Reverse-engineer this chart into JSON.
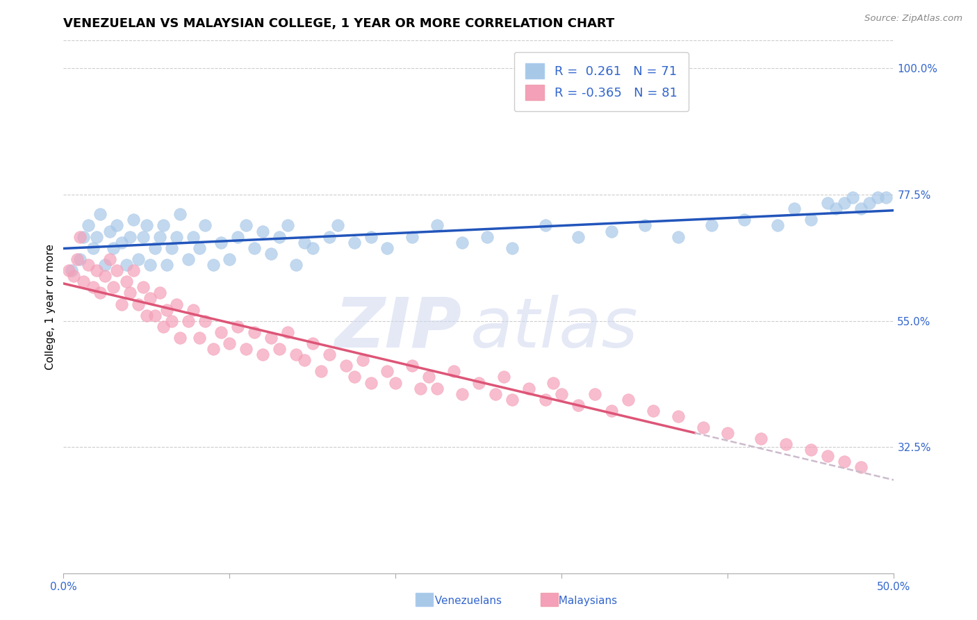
{
  "title": "VENEZUELAN VS MALAYSIAN COLLEGE, 1 YEAR OR MORE CORRELATION CHART",
  "source": "Source: ZipAtlas.com",
  "ylabel": "College, 1 year or more",
  "xlim": [
    0.0,
    0.5
  ],
  "ylim": [
    0.1,
    1.05
  ],
  "xticks": [
    0.0,
    0.1,
    0.2,
    0.3,
    0.4,
    0.5
  ],
  "xticklabels": [
    "0.0%",
    "",
    "",
    "",
    "",
    "50.0%"
  ],
  "yticks_right": [
    0.325,
    0.55,
    0.775,
    1.0
  ],
  "yticklabels_right": [
    "32.5%",
    "55.0%",
    "77.5%",
    "100.0%"
  ],
  "venezuelan_color": "#a8c8e8",
  "malaysian_color": "#f4a0b8",
  "trend_blue": "#2255bb",
  "trend_pink": "#dd5577",
  "trend_dashed_color": "#ccbbcc",
  "R_venezuelan": 0.261,
  "N_venezuelan": 71,
  "R_malaysian": -0.365,
  "N_malaysian": 81,
  "legend_label_venezuelan": "Venezuelans",
  "legend_label_malaysian": "Malaysians",
  "title_fontsize": 13,
  "axis_label_fontsize": 11,
  "tick_fontsize": 11,
  "watermark_color": "#d0d8f0",
  "grid_color": "#cccccc",
  "label_color": "#3366cc",
  "venezuelan_x": [
    0.005,
    0.01,
    0.012,
    0.015,
    0.018,
    0.02,
    0.022,
    0.025,
    0.028,
    0.03,
    0.032,
    0.035,
    0.038,
    0.04,
    0.042,
    0.045,
    0.048,
    0.05,
    0.052,
    0.055,
    0.058,
    0.06,
    0.062,
    0.065,
    0.068,
    0.07,
    0.075,
    0.078,
    0.082,
    0.085,
    0.09,
    0.095,
    0.1,
    0.105,
    0.11,
    0.115,
    0.12,
    0.125,
    0.13,
    0.135,
    0.14,
    0.145,
    0.15,
    0.16,
    0.165,
    0.175,
    0.185,
    0.195,
    0.21,
    0.225,
    0.24,
    0.255,
    0.27,
    0.29,
    0.31,
    0.33,
    0.35,
    0.37,
    0.39,
    0.41,
    0.43,
    0.44,
    0.45,
    0.46,
    0.465,
    0.47,
    0.475,
    0.48,
    0.485,
    0.49,
    0.495
  ],
  "venezuelan_y": [
    0.64,
    0.66,
    0.7,
    0.72,
    0.68,
    0.7,
    0.74,
    0.65,
    0.71,
    0.68,
    0.72,
    0.69,
    0.65,
    0.7,
    0.73,
    0.66,
    0.7,
    0.72,
    0.65,
    0.68,
    0.7,
    0.72,
    0.65,
    0.68,
    0.7,
    0.74,
    0.66,
    0.7,
    0.68,
    0.72,
    0.65,
    0.69,
    0.66,
    0.7,
    0.72,
    0.68,
    0.71,
    0.67,
    0.7,
    0.72,
    0.65,
    0.69,
    0.68,
    0.7,
    0.72,
    0.69,
    0.7,
    0.68,
    0.7,
    0.72,
    0.69,
    0.7,
    0.68,
    0.72,
    0.7,
    0.71,
    0.72,
    0.7,
    0.72,
    0.73,
    0.72,
    0.75,
    0.73,
    0.76,
    0.75,
    0.76,
    0.77,
    0.75,
    0.76,
    0.77,
    0.77
  ],
  "malaysian_x": [
    0.003,
    0.006,
    0.008,
    0.01,
    0.012,
    0.015,
    0.018,
    0.02,
    0.022,
    0.025,
    0.028,
    0.03,
    0.032,
    0.035,
    0.038,
    0.04,
    0.042,
    0.045,
    0.048,
    0.05,
    0.052,
    0.055,
    0.058,
    0.06,
    0.062,
    0.065,
    0.068,
    0.07,
    0.075,
    0.078,
    0.082,
    0.085,
    0.09,
    0.095,
    0.1,
    0.105,
    0.11,
    0.115,
    0.12,
    0.125,
    0.13,
    0.135,
    0.14,
    0.145,
    0.15,
    0.155,
    0.16,
    0.17,
    0.175,
    0.18,
    0.185,
    0.195,
    0.2,
    0.21,
    0.215,
    0.22,
    0.225,
    0.235,
    0.24,
    0.25,
    0.26,
    0.265,
    0.27,
    0.28,
    0.29,
    0.295,
    0.3,
    0.31,
    0.32,
    0.33,
    0.34,
    0.355,
    0.37,
    0.385,
    0.4,
    0.42,
    0.435,
    0.45,
    0.46,
    0.47,
    0.48
  ],
  "malaysian_y": [
    0.64,
    0.63,
    0.66,
    0.7,
    0.62,
    0.65,
    0.61,
    0.64,
    0.6,
    0.63,
    0.66,
    0.61,
    0.64,
    0.58,
    0.62,
    0.6,
    0.64,
    0.58,
    0.61,
    0.56,
    0.59,
    0.56,
    0.6,
    0.54,
    0.57,
    0.55,
    0.58,
    0.52,
    0.55,
    0.57,
    0.52,
    0.55,
    0.5,
    0.53,
    0.51,
    0.54,
    0.5,
    0.53,
    0.49,
    0.52,
    0.5,
    0.53,
    0.49,
    0.48,
    0.51,
    0.46,
    0.49,
    0.47,
    0.45,
    0.48,
    0.44,
    0.46,
    0.44,
    0.47,
    0.43,
    0.45,
    0.43,
    0.46,
    0.42,
    0.44,
    0.42,
    0.45,
    0.41,
    0.43,
    0.41,
    0.44,
    0.42,
    0.4,
    0.42,
    0.39,
    0.41,
    0.39,
    0.38,
    0.36,
    0.35,
    0.34,
    0.33,
    0.32,
    0.31,
    0.3,
    0.29
  ]
}
